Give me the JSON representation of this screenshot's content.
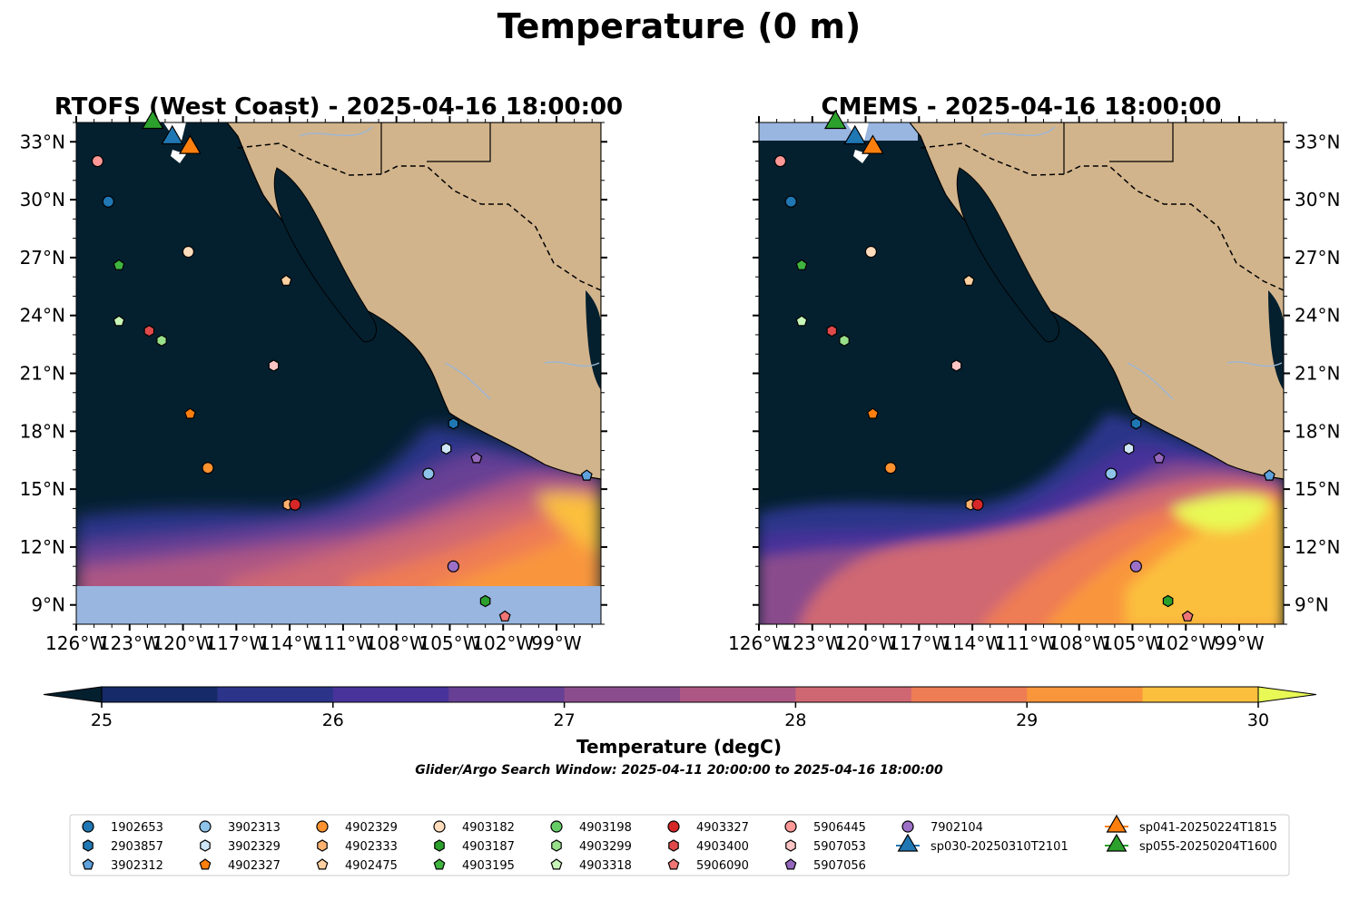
{
  "figure": {
    "title": "Temperature (0 m)",
    "subtitle": "Glider/Argo Search Window: 2025-04-11 20:00:00 to 2025-04-16 18:00:00"
  },
  "colors": {
    "land": "#d2b48c",
    "no_data": "#98b6e0",
    "rivers": "#9eb6d2",
    "colormap": [
      "#04202f",
      "#152a66",
      "#2c3489",
      "#47339a",
      "#673f94",
      "#8a4c8c",
      "#ad5784",
      "#cf6772",
      "#ee7c55",
      "#f9963c",
      "#fbbf3d",
      "#e8f955"
    ]
  },
  "chart_data": [
    {
      "type": "heatmap",
      "title": "RTOFS (West Coast) - 2025-04-16 18:00:00",
      "xlim": [
        -126,
        -96.5
      ],
      "ylim": [
        8,
        34
      ],
      "xticks": [
        "126°W",
        "123°W",
        "120°W",
        "117°W",
        "114°W",
        "111°W",
        "108°W",
        "105°W",
        "102°W",
        "99°W"
      ],
      "yticks": [
        "9°N",
        "12°N",
        "15°N",
        "18°N",
        "21°N",
        "24°N",
        "27°N",
        "30°N",
        "33°N"
      ],
      "note_no_data": "south of 10°N no data",
      "markers": [
        {
          "id": "1902653",
          "lon": -124.2,
          "lat": 29.9
        },
        {
          "id": "4903195",
          "lon": -123.6,
          "lat": 26.6
        },
        {
          "id": "4903318",
          "lon": -123.6,
          "lat": 23.7
        },
        {
          "id": "4903400",
          "lon": -121.9,
          "lat": 23.2
        },
        {
          "id": "4903299",
          "lon": -121.2,
          "lat": 22.7
        },
        {
          "id": "5906445",
          "lon": -124.8,
          "lat": 32.0
        },
        {
          "id": "4903182",
          "lon": -119.7,
          "lat": 27.3
        },
        {
          "id": "4902475",
          "lon": -114.2,
          "lat": 25.8
        },
        {
          "id": "5907053",
          "lon": -114.9,
          "lat": 21.4
        },
        {
          "id": "4902327",
          "lon": -119.6,
          "lat": 18.9
        },
        {
          "id": "4902329",
          "lon": -118.6,
          "lat": 16.1
        },
        {
          "id": "4902333",
          "lon": -114.1,
          "lat": 14.2
        },
        {
          "id": "4903327",
          "lon": -113.7,
          "lat": 14.2
        },
        {
          "id": "2903857",
          "lon": -104.8,
          "lat": 18.4
        },
        {
          "id": "3902329",
          "lon": -105.2,
          "lat": 17.1
        },
        {
          "id": "3902313",
          "lon": -106.2,
          "lat": 15.8
        },
        {
          "id": "5907056",
          "lon": -103.5,
          "lat": 16.6
        },
        {
          "id": "3902312",
          "lon": -97.3,
          "lat": 15.7
        },
        {
          "id": "7902104",
          "lon": -104.8,
          "lat": 11.0
        },
        {
          "id": "4903187",
          "lon": -103.0,
          "lat": 9.2
        },
        {
          "id": "5906090",
          "lon": -101.9,
          "lat": 8.4
        },
        {
          "id": "sp030-20250310T2101",
          "lon": -120.6,
          "lat": 33.2
        },
        {
          "id": "sp041-20250224T1815",
          "lon": -119.6,
          "lat": 32.7
        },
        {
          "id": "sp055-20250204T1600",
          "lon": -121.7,
          "lat": 34.0
        }
      ]
    },
    {
      "type": "heatmap",
      "title": "CMEMS - 2025-04-16 18:00:00",
      "xlim": [
        -126,
        -96.5
      ],
      "ylim": [
        8,
        34
      ],
      "xticks": [
        "126°W",
        "123°W",
        "120°W",
        "117°W",
        "114°W",
        "111°W",
        "108°W",
        "105°W",
        "102°W",
        "99°W"
      ],
      "yticks": [
        "9°N",
        "12°N",
        "15°N",
        "18°N",
        "21°N",
        "24°N",
        "27°N",
        "30°N",
        "33°N"
      ],
      "markers": "same as RTOFS panel"
    },
    {
      "type": "colorbar",
      "label": "Temperature (degC)",
      "ticks": [
        25,
        26,
        27,
        28,
        29,
        30
      ],
      "levels": [
        25,
        25.5,
        26,
        26.5,
        27,
        27.5,
        28,
        28.5,
        29,
        29.5,
        30
      ],
      "extend": "both"
    }
  ],
  "legend": {
    "items": [
      {
        "label": "1902653",
        "shape": "circle",
        "color": "#1f77b4"
      },
      {
        "label": "2903857",
        "shape": "hexagon",
        "color": "#1f77b4"
      },
      {
        "label": "3902312",
        "shape": "pentagon",
        "color": "#5fa2dd"
      },
      {
        "label": "3902313",
        "shape": "circle",
        "color": "#8ec3ea"
      },
      {
        "label": "3902329",
        "shape": "hexagon",
        "color": "#cfe6f7"
      },
      {
        "label": "4902327",
        "shape": "pentagon",
        "color": "#ff7f0e"
      },
      {
        "label": "4902329",
        "shape": "circle",
        "color": "#ff922e"
      },
      {
        "label": "4902333",
        "shape": "hexagon",
        "color": "#ffb270"
      },
      {
        "label": "4902475",
        "shape": "pentagon",
        "color": "#ffd0a0"
      },
      {
        "label": "4903182",
        "shape": "circle",
        "color": "#ffdcbc"
      },
      {
        "label": "4903187",
        "shape": "hexagon",
        "color": "#2ca02c"
      },
      {
        "label": "4903195",
        "shape": "pentagon",
        "color": "#3fb53f"
      },
      {
        "label": "4903198",
        "shape": "circle",
        "color": "#66cc66"
      },
      {
        "label": "4903299",
        "shape": "hexagon",
        "color": "#98df8a"
      },
      {
        "label": "4903318",
        "shape": "pentagon",
        "color": "#c8f5b8"
      },
      {
        "label": "4903327",
        "shape": "circle",
        "color": "#d62728"
      },
      {
        "label": "4903400",
        "shape": "hexagon",
        "color": "#e04a4a"
      },
      {
        "label": "5906090",
        "shape": "pentagon",
        "color": "#f07575"
      },
      {
        "label": "5906445",
        "shape": "circle",
        "color": "#ff9896"
      },
      {
        "label": "5907053",
        "shape": "hexagon",
        "color": "#ffc4c4"
      },
      {
        "label": "5907056",
        "shape": "pentagon",
        "color": "#9467bd"
      },
      {
        "label": "7902104",
        "shape": "circle",
        "color": "#9c70c6"
      },
      {
        "label": "sp030-20250310T2101",
        "shape": "triangle",
        "color": "#1f77b4"
      },
      {
        "label": "sp041-20250224T1815",
        "shape": "triangle",
        "color": "#ff7f0e"
      },
      {
        "label": "sp055-20250204T1600",
        "shape": "triangle",
        "color": "#2ca02c"
      }
    ]
  }
}
